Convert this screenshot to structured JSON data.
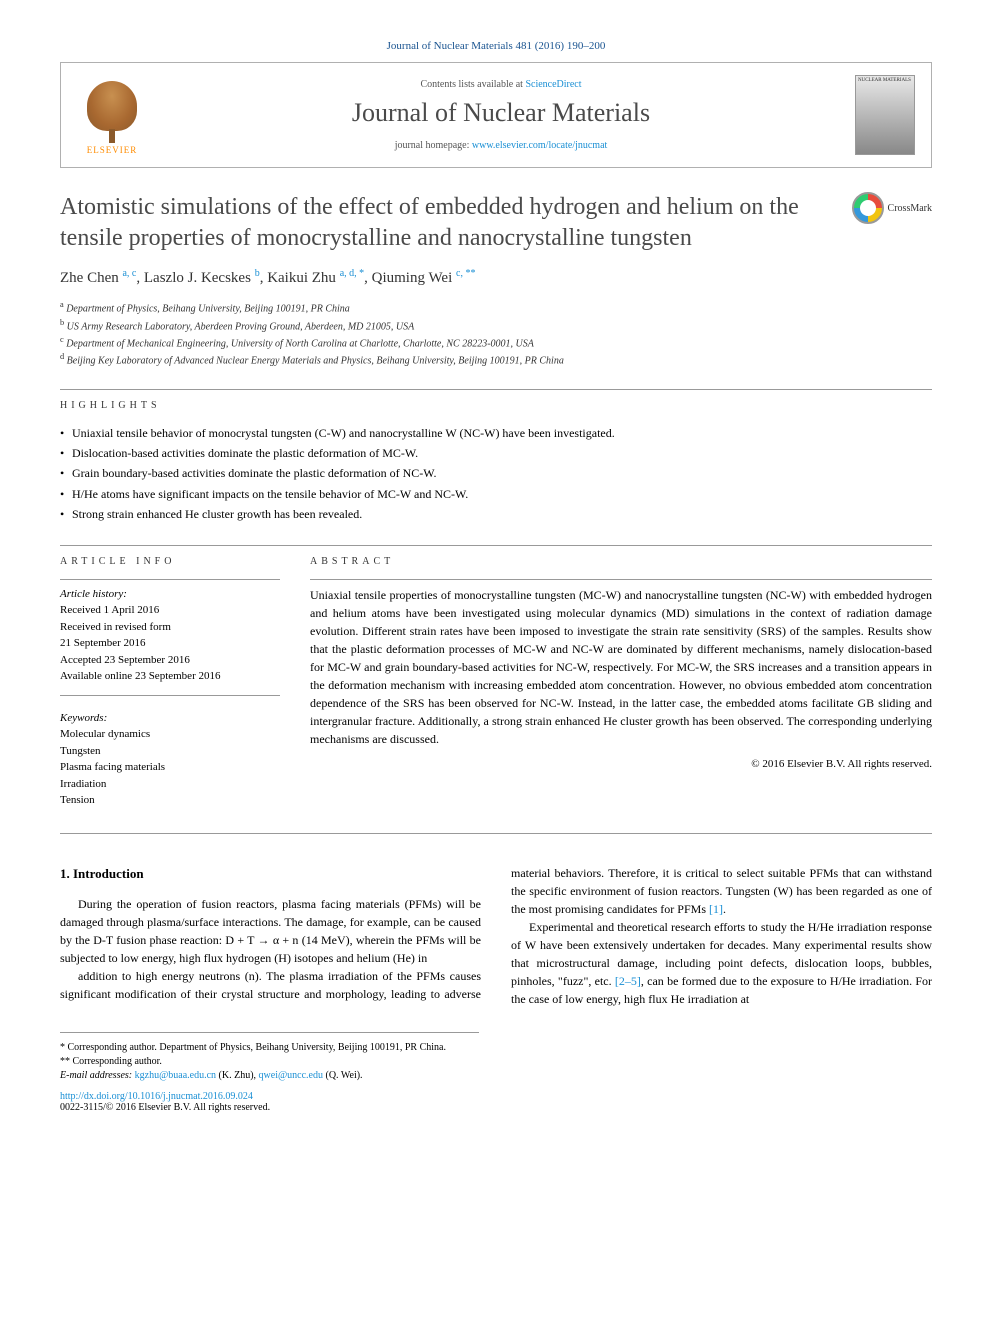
{
  "journal_ref": "Journal of Nuclear Materials 481 (2016) 190–200",
  "header": {
    "publisher_logo_text": "ELSEVIER",
    "contents_prefix": "Contents lists available at ",
    "contents_link": "ScienceDirect",
    "journal_name": "Journal of Nuclear Materials",
    "homepage_prefix": "journal homepage: ",
    "homepage_url": "www.elsevier.com/locate/jnucmat",
    "cover_label": "NUCLEAR MATERIALS"
  },
  "article": {
    "title": "Atomistic simulations of the effect of embedded hydrogen and helium on the tensile properties of monocrystalline and nanocrystalline tungsten",
    "crossmark_label": "CrossMark",
    "authors_html": "Zhe Chen <sup>a, c</sup>, Laszlo J. Kecskes <sup>b</sup>, Kaikui Zhu <sup>a, d, *</sup>, Qiuming Wei <sup>c, **</sup>",
    "affiliations": [
      {
        "sup": "a",
        "text": "Department of Physics, Beihang University, Beijing 100191, PR China"
      },
      {
        "sup": "b",
        "text": "US Army Research Laboratory, Aberdeen Proving Ground, Aberdeen, MD 21005, USA"
      },
      {
        "sup": "c",
        "text": "Department of Mechanical Engineering, University of North Carolina at Charlotte, Charlotte, NC 28223-0001, USA"
      },
      {
        "sup": "d",
        "text": "Beijing Key Laboratory of Advanced Nuclear Energy Materials and Physics, Beihang University, Beijing 100191, PR China"
      }
    ]
  },
  "highlights": {
    "label": "HIGHLIGHTS",
    "items": [
      "Uniaxial tensile behavior of monocrystal tungsten (C-W) and nanocrystalline W (NC-W) have been investigated.",
      "Dislocation-based activities dominate the plastic deformation of MC-W.",
      "Grain boundary-based activities dominate the plastic deformation of NC-W.",
      "H/He atoms have significant impacts on the tensile behavior of MC-W and NC-W.",
      "Strong strain enhanced He cluster growth has been revealed."
    ]
  },
  "article_info": {
    "label": "ARTICLE INFO",
    "history_label": "Article history:",
    "history": [
      "Received 1 April 2016",
      "Received in revised form",
      "21 September 2016",
      "Accepted 23 September 2016",
      "Available online 23 September 2016"
    ],
    "keywords_label": "Keywords:",
    "keywords": [
      "Molecular dynamics",
      "Tungsten",
      "Plasma facing materials",
      "Irradiation",
      "Tension"
    ]
  },
  "abstract": {
    "label": "ABSTRACT",
    "text": "Uniaxial tensile properties of monocrystalline tungsten (MC-W) and nanocrystalline tungsten (NC-W) with embedded hydrogen and helium atoms have been investigated using molecular dynamics (MD) simulations in the context of radiation damage evolution. Different strain rates have been imposed to investigate the strain rate sensitivity (SRS) of the samples. Results show that the plastic deformation processes of MC-W and NC-W are dominated by different mechanisms, namely dislocation-based for MC-W and grain boundary-based activities for NC-W, respectively. For MC-W, the SRS increases and a transition appears in the deformation mechanism with increasing embedded atom concentration. However, no obvious embedded atom concentration dependence of the SRS has been observed for NC-W. Instead, in the latter case, the embedded atoms facilitate GB sliding and intergranular fracture. Additionally, a strong strain enhanced He cluster growth has been observed. The corresponding underlying mechanisms are discussed.",
    "copyright": "© 2016 Elsevier B.V. All rights reserved."
  },
  "body": {
    "heading": "1. Introduction",
    "para1": "During the operation of fusion reactors, plasma facing materials (PFMs) will be damaged through plasma/surface interactions. The damage, for example, can be caused by the D-T fusion phase reaction: D + T → α + n (14 MeV), wherein the PFMs will be subjected to low energy, high flux hydrogen (H) isotopes and helium (He) in",
    "para2_a": "addition to high energy neutrons (n). The plasma irradiation of the PFMs causes significant modification of their crystal structure and morphology, leading to adverse material behaviors. Therefore, it is critical to select suitable PFMs that can withstand the specific environment of fusion reactors. Tungsten (W) has been regarded as one of the most promising candidates for PFMs ",
    "ref1": "[1]",
    "para2_b": ".",
    "para3_a": "Experimental and theoretical research efforts to study the H/He irradiation response of W have been extensively undertaken for decades. Many experimental results show that microstructural damage, including point defects, dislocation loops, bubbles, pinholes, \"fuzz\", etc. ",
    "ref2": "[2–5]",
    "para3_b": ", can be formed due to the exposure to H/He irradiation. For the case of low energy, high flux He irradiation at"
  },
  "footnotes": {
    "corr1": "* Corresponding author. Department of Physics, Beihang University, Beijing 100191, PR China.",
    "corr2": "** Corresponding author.",
    "email_label": "E-mail addresses:",
    "email1": "kgzhu@buaa.edu.cn",
    "email1_name": " (K. Zhu), ",
    "email2": "qwei@uncc.edu",
    "email2_name": " (Q. Wei)."
  },
  "doi": {
    "url": "http://dx.doi.org/10.1016/j.jnucmat.2016.09.024",
    "issn_line": "0022-3115/© 2016 Elsevier B.V. All rights reserved."
  },
  "colors": {
    "link": "#1a8fd4",
    "text_gray": "#4a4a4a",
    "border": "#b0b0b0"
  }
}
